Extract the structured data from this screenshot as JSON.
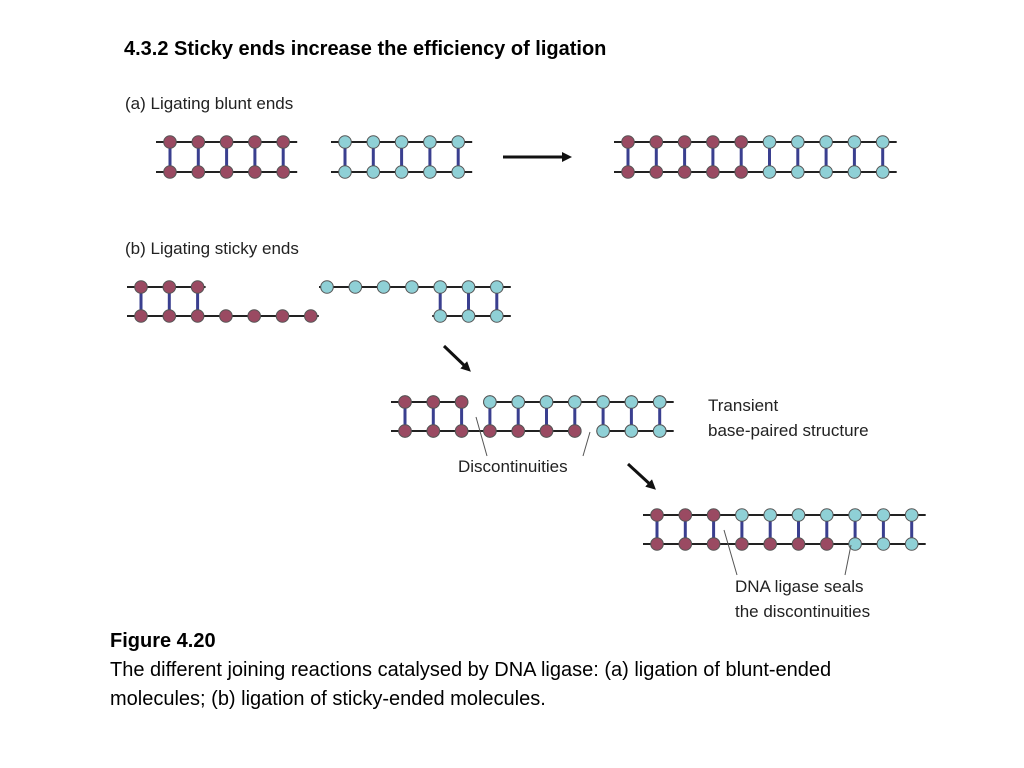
{
  "title": "4.3.2 Sticky ends increase the efficiency of ligation",
  "figure": {
    "colors": {
      "strand": "#222222",
      "base_pair": "#3a3f8f",
      "molecule_1_nucleotide": "#9a4a62",
      "molecule_2_nucleotide": "#8fd0d6",
      "nucleotide_outline": "#555555",
      "arrow": "#111111"
    },
    "panel_a": {
      "label": "(a) Ligating blunt ends"
    },
    "panel_b": {
      "label": "(b) Ligating sticky ends",
      "transient_label_line1": "Transient",
      "transient_label_line2": "base-paired structure",
      "discontinuities_label": "Discontinuities",
      "ligase_label_line1": "DNA ligase seals",
      "ligase_label_line2": "the discontinuities"
    }
  },
  "caption": {
    "heading": "Figure 4.20",
    "body": "The different joining reactions catalysed by DNA ligase: (a) ligation of blunt-ended molecules; (b) ligation of sticky-ended molecules."
  }
}
